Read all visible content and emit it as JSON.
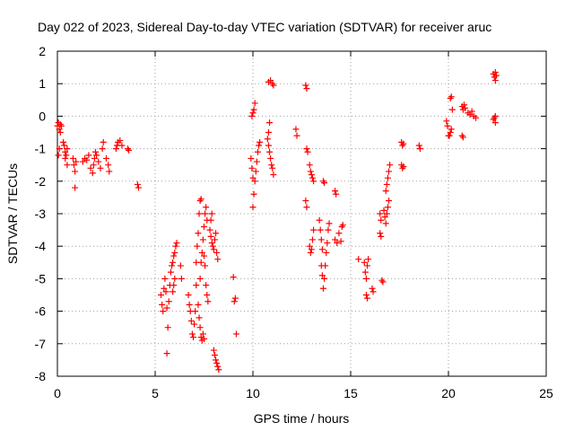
{
  "chart_data": {
    "type": "scatter",
    "title": "Day 022 of 2023, Sidereal Day-to-day VTEC variation (SDTVAR) for receiver aruc",
    "xlabel": "GPS time / hours",
    "ylabel": "SDTVAR / TECUs",
    "xlim": [
      0,
      25
    ],
    "ylim": [
      -8,
      2
    ],
    "xticks": [
      0,
      5,
      10,
      15,
      20,
      25
    ],
    "yticks": [
      -8,
      -7,
      -6,
      -5,
      -4,
      -3,
      -2,
      -1,
      0,
      1,
      2
    ],
    "grid": true,
    "marker": "+",
    "color": "#ff0000",
    "series": [
      {
        "name": "SDTVAR",
        "points": [
          [
            0.0,
            -0.3
          ],
          [
            0.05,
            -0.2
          ],
          [
            0.1,
            -0.4
          ],
          [
            0.15,
            -0.25
          ],
          [
            0.05,
            -1.2
          ],
          [
            0.1,
            -1.0
          ],
          [
            0.15,
            -0.5
          ],
          [
            0.2,
            -0.3
          ],
          [
            0.3,
            -0.8
          ],
          [
            0.35,
            -0.9
          ],
          [
            0.4,
            -1.1
          ],
          [
            0.45,
            -1.2
          ],
          [
            0.5,
            -1.5
          ],
          [
            0.4,
            -1.3
          ],
          [
            0.5,
            -1.0
          ],
          [
            0.8,
            -1.3
          ],
          [
            0.85,
            -1.5
          ],
          [
            0.9,
            -1.7
          ],
          [
            0.9,
            -2.2
          ],
          [
            0.95,
            -1.4
          ],
          [
            1.3,
            -1.4
          ],
          [
            1.4,
            -1.3
          ],
          [
            1.5,
            -1.35
          ],
          [
            1.6,
            -1.2
          ],
          [
            1.7,
            -1.6
          ],
          [
            1.8,
            -1.75
          ],
          [
            1.85,
            -1.5
          ],
          [
            1.9,
            -1.3
          ],
          [
            1.95,
            -1.1
          ],
          [
            2.0,
            -1.2
          ],
          [
            2.1,
            -1.4
          ],
          [
            2.2,
            -1.6
          ],
          [
            2.3,
            -1.0
          ],
          [
            2.35,
            -0.8
          ],
          [
            2.5,
            -1.3
          ],
          [
            2.6,
            -1.5
          ],
          [
            2.65,
            -1.7
          ],
          [
            3.0,
            -1.0
          ],
          [
            3.05,
            -0.9
          ],
          [
            3.1,
            -0.8
          ],
          [
            3.2,
            -0.75
          ],
          [
            3.3,
            -0.9
          ],
          [
            3.6,
            -1.0
          ],
          [
            3.65,
            -1.05
          ],
          [
            4.1,
            -2.1
          ],
          [
            4.15,
            -2.2
          ],
          [
            5.3,
            -5.5
          ],
          [
            5.35,
            -5.8
          ],
          [
            5.4,
            -6.0
          ],
          [
            5.45,
            -5.3
          ],
          [
            5.5,
            -5.0
          ],
          [
            5.55,
            -5.4
          ],
          [
            5.6,
            -5.9
          ],
          [
            5.6,
            -7.3
          ],
          [
            5.65,
            -6.5
          ],
          [
            5.7,
            -5.7
          ],
          [
            5.75,
            -5.2
          ],
          [
            5.8,
            -4.8
          ],
          [
            5.85,
            -4.6
          ],
          [
            5.9,
            -4.5
          ],
          [
            5.95,
            -4.3
          ],
          [
            6.0,
            -4.2
          ],
          [
            6.05,
            -4.0
          ],
          [
            6.1,
            -3.9
          ],
          [
            5.9,
            -5.4
          ],
          [
            5.95,
            -5.2
          ],
          [
            6.0,
            -5.0
          ],
          [
            6.3,
            -4.6
          ],
          [
            6.35,
            -5.0
          ],
          [
            6.7,
            -5.5
          ],
          [
            6.75,
            -5.8
          ],
          [
            6.8,
            -6.0
          ],
          [
            6.85,
            -6.3
          ],
          [
            6.9,
            -6.7
          ],
          [
            6.95,
            -6.8
          ],
          [
            7.0,
            -6.4
          ],
          [
            7.05,
            -6.0
          ],
          [
            7.1,
            -5.2
          ],
          [
            7.1,
            -4.5
          ],
          [
            7.15,
            -4.0
          ],
          [
            7.2,
            -3.6
          ],
          [
            7.25,
            -3.0
          ],
          [
            7.3,
            -2.6
          ],
          [
            7.35,
            -2.55
          ],
          [
            7.3,
            -5.0
          ],
          [
            7.35,
            -4.5
          ],
          [
            7.4,
            -4.2
          ],
          [
            7.45,
            -3.8
          ],
          [
            7.5,
            -3.4
          ],
          [
            7.55,
            -3.0
          ],
          [
            7.6,
            -2.8
          ],
          [
            7.65,
            -3.2
          ],
          [
            7.2,
            -5.8
          ],
          [
            7.25,
            -6.2
          ],
          [
            7.3,
            -6.5
          ],
          [
            7.35,
            -6.8
          ],
          [
            7.4,
            -6.9
          ],
          [
            7.45,
            -6.7
          ],
          [
            7.5,
            -6.85
          ],
          [
            7.6,
            -5.2
          ],
          [
            7.65,
            -5.5
          ],
          [
            7.7,
            -5.7
          ],
          [
            7.5,
            -4.3
          ],
          [
            7.55,
            -4.6
          ],
          [
            7.8,
            -3.5
          ],
          [
            7.85,
            -3.7
          ],
          [
            7.9,
            -3.9
          ],
          [
            7.95,
            -4.0
          ],
          [
            8.0,
            -4.1
          ],
          [
            8.05,
            -3.8
          ],
          [
            8.1,
            -3.6
          ],
          [
            8.15,
            -4.2
          ],
          [
            8.2,
            -4.4
          ],
          [
            7.85,
            -3.2
          ],
          [
            7.9,
            -3.0
          ],
          [
            8.0,
            -7.2
          ],
          [
            8.05,
            -7.35
          ],
          [
            8.1,
            -7.5
          ],
          [
            8.15,
            -7.6
          ],
          [
            8.2,
            -7.7
          ],
          [
            8.25,
            -7.8
          ],
          [
            9.0,
            -4.95
          ],
          [
            9.05,
            -5.7
          ],
          [
            9.1,
            -5.6
          ],
          [
            9.15,
            -6.7
          ],
          [
            9.9,
            -1.3
          ],
          [
            9.95,
            -1.6
          ],
          [
            10.0,
            -1.9
          ],
          [
            10.0,
            -2.8
          ],
          [
            10.05,
            -2.4
          ],
          [
            10.1,
            -2.0
          ],
          [
            10.15,
            -1.7
          ],
          [
            10.2,
            -1.4
          ],
          [
            10.25,
            -1.1
          ],
          [
            10.3,
            -0.9
          ],
          [
            10.35,
            -0.8
          ],
          [
            9.95,
            0.0
          ],
          [
            10.0,
            0.1
          ],
          [
            10.05,
            0.2
          ],
          [
            10.1,
            0.4
          ],
          [
            10.75,
            -0.7
          ],
          [
            10.8,
            -0.9
          ],
          [
            10.85,
            -1.1
          ],
          [
            10.9,
            -1.3
          ],
          [
            10.95,
            -1.5
          ],
          [
            11.0,
            -1.6
          ],
          [
            11.05,
            -1.8
          ],
          [
            10.8,
            -0.5
          ],
          [
            10.85,
            -0.2
          ],
          [
            10.8,
            1.05
          ],
          [
            10.9,
            1.1
          ],
          [
            11.0,
            1.0
          ],
          [
            11.05,
            0.95
          ],
          [
            12.2,
            -0.4
          ],
          [
            12.25,
            -0.6
          ],
          [
            12.7,
            0.95
          ],
          [
            12.75,
            0.85
          ],
          [
            12.7,
            -2.6
          ],
          [
            12.75,
            -2.8
          ],
          [
            12.75,
            -1.0
          ],
          [
            12.8,
            -1.1
          ],
          [
            12.9,
            -1.5
          ],
          [
            12.95,
            -1.7
          ],
          [
            13.0,
            -1.8
          ],
          [
            13.05,
            -1.9
          ],
          [
            13.1,
            -2.0
          ],
          [
            12.9,
            -4.0
          ],
          [
            12.95,
            -4.2
          ],
          [
            13.0,
            -4.1
          ],
          [
            13.05,
            -3.8
          ],
          [
            13.1,
            -3.5
          ],
          [
            13.4,
            -3.2
          ],
          [
            13.45,
            -3.5
          ],
          [
            13.5,
            -3.8
          ],
          [
            13.55,
            -4.1
          ],
          [
            13.5,
            -4.6
          ],
          [
            13.55,
            -4.9
          ],
          [
            13.6,
            -5.3
          ],
          [
            13.65,
            -5.0
          ],
          [
            13.7,
            -4.6
          ],
          [
            13.75,
            -4.2
          ],
          [
            13.8,
            -3.9
          ],
          [
            13.85,
            -3.5
          ],
          [
            13.9,
            -3.3
          ],
          [
            13.6,
            -2.0
          ],
          [
            13.65,
            -2.05
          ],
          [
            14.2,
            -3.8
          ],
          [
            14.3,
            -3.9
          ],
          [
            14.4,
            -3.6
          ],
          [
            14.5,
            -3.85
          ],
          [
            14.55,
            -3.4
          ],
          [
            14.6,
            -3.35
          ],
          [
            14.2,
            -2.3
          ],
          [
            14.25,
            -2.4
          ],
          [
            15.4,
            -4.4
          ],
          [
            15.7,
            -4.5
          ],
          [
            15.75,
            -4.8
          ],
          [
            15.8,
            -5.0
          ],
          [
            15.85,
            -4.6
          ],
          [
            15.9,
            -4.4
          ],
          [
            15.8,
            -5.5
          ],
          [
            15.85,
            -5.6
          ],
          [
            16.1,
            -5.3
          ],
          [
            16.15,
            -5.4
          ],
          [
            16.5,
            -3.0
          ],
          [
            16.55,
            -3.2
          ],
          [
            16.5,
            -3.6
          ],
          [
            16.55,
            -3.7
          ],
          [
            16.6,
            -5.05
          ],
          [
            16.65,
            -5.1
          ],
          [
            16.7,
            -2.9
          ],
          [
            16.75,
            -3.1
          ],
          [
            16.8,
            -3.3
          ],
          [
            16.85,
            -3.0
          ],
          [
            16.9,
            -2.8
          ],
          [
            16.95,
            -2.6
          ],
          [
            16.8,
            -2.3
          ],
          [
            16.85,
            -2.1
          ],
          [
            16.9,
            -1.9
          ],
          [
            16.95,
            -1.7
          ],
          [
            17.0,
            -1.5
          ],
          [
            17.6,
            -0.8
          ],
          [
            17.65,
            -0.9
          ],
          [
            17.7,
            -0.85
          ],
          [
            17.6,
            -1.5
          ],
          [
            17.65,
            -1.6
          ],
          [
            17.7,
            -1.55
          ],
          [
            18.5,
            -0.9
          ],
          [
            18.55,
            -1.0
          ],
          [
            19.9,
            -0.15
          ],
          [
            19.95,
            -0.3
          ],
          [
            20.0,
            -0.6
          ],
          [
            20.05,
            -0.6
          ],
          [
            20.1,
            -0.5
          ],
          [
            20.15,
            -0.4
          ],
          [
            20.1,
            0.55
          ],
          [
            20.15,
            0.6
          ],
          [
            20.2,
            0.2
          ],
          [
            20.7,
            0.3
          ],
          [
            20.75,
            0.2
          ],
          [
            20.8,
            0.35
          ],
          [
            20.85,
            0.25
          ],
          [
            20.7,
            -0.6
          ],
          [
            20.75,
            -0.65
          ],
          [
            21.0,
            0.1
          ],
          [
            21.1,
            0.05
          ],
          [
            21.2,
            0.15
          ],
          [
            21.3,
            0.0
          ],
          [
            21.4,
            -0.05
          ],
          [
            22.3,
            1.3
          ],
          [
            22.35,
            1.2
          ],
          [
            22.4,
            1.35
          ],
          [
            22.45,
            1.25
          ],
          [
            22.4,
            1.1
          ],
          [
            22.3,
            -0.1
          ],
          [
            22.35,
            -0.05
          ],
          [
            22.4,
            0.0
          ],
          [
            22.4,
            -0.2
          ]
        ]
      }
    ]
  }
}
